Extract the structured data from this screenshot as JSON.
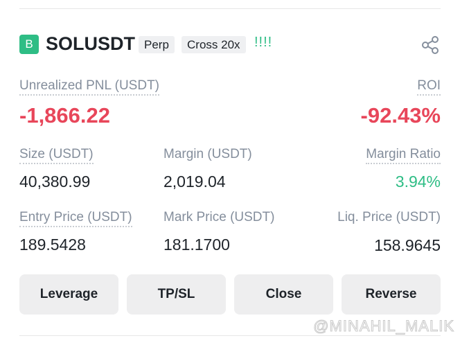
{
  "header": {
    "badge": "B",
    "symbol": "SOLUSDT",
    "tags": [
      "Perp",
      "Cross 20x"
    ],
    "signal": "!!!!"
  },
  "pnl": {
    "label": "Unrealized PNL (USDT)",
    "value": "-1,866.22",
    "roi_label": "ROI",
    "roi": "-92.43%"
  },
  "stats": [
    [
      {
        "label": "Size (USDT)",
        "value": "40,380.99"
      },
      {
        "label": "Margin (USDT)",
        "value": "2,019.04"
      },
      {
        "label": "Margin Ratio",
        "value": "3.94%"
      }
    ],
    [
      {
        "label": "Entry Price (USDT)",
        "value": "189.5428"
      },
      {
        "label": "Mark Price (USDT)",
        "value": "181.1700"
      },
      {
        "label": "Liq. Price (USDT)",
        "value": "158.9645"
      }
    ]
  ],
  "buttons": [
    "Leverage",
    "TP/SL",
    "Close",
    "Reverse"
  ],
  "watermark": "@MINAHIL_MALIK"
}
